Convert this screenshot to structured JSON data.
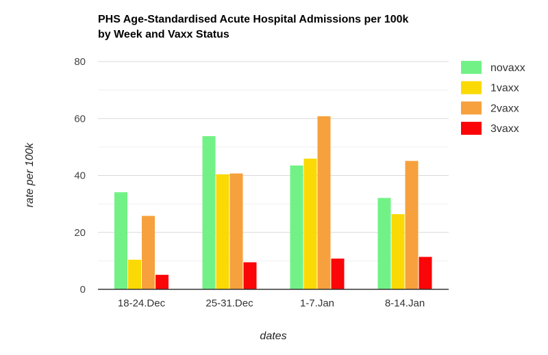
{
  "chart_data": {
    "type": "bar",
    "title_lines": [
      "PHS Age-Standardised Acute Hospital Admissions per 100k",
      "by Week and Vaxx Status"
    ],
    "xlabel": "dates",
    "ylabel": "rate per 100k",
    "ylim": [
      0,
      80
    ],
    "yticks": [
      0,
      20,
      40,
      60,
      80
    ],
    "minor_grid": [
      10,
      30,
      50,
      70
    ],
    "grid": true,
    "legend_position": "right",
    "categories": [
      "18-24.Dec",
      "25-31.Dec",
      "1-7.Jan",
      "8-14.Jan"
    ],
    "series": [
      {
        "name": "novaxx",
        "color": "#72f286",
        "values": [
          34.1,
          53.8,
          43.5,
          32.1
        ]
      },
      {
        "name": "1vaxx",
        "color": "#fbd904",
        "values": [
          10.4,
          40.4,
          45.9,
          26.4
        ]
      },
      {
        "name": "2vaxx",
        "color": "#f6a13d",
        "values": [
          25.8,
          40.7,
          60.8,
          45.1
        ]
      },
      {
        "name": "3vaxx",
        "color": "#fa0508",
        "values": [
          5.1,
          9.5,
          10.8,
          11.4
        ]
      }
    ]
  }
}
